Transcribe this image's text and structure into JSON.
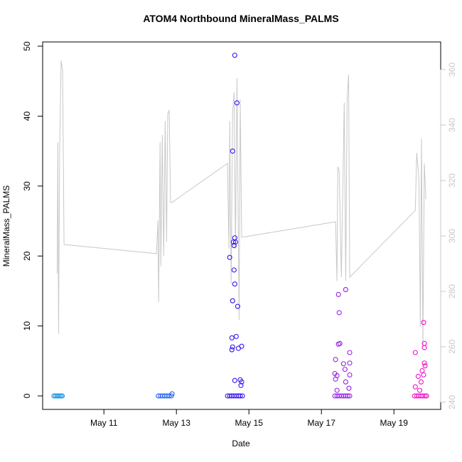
{
  "chart_data": {
    "type": "scatter",
    "title": "ATOM4 Northbound MineralMass_PALMS",
    "x_label": "Date",
    "y_label": "MineralMass_PALMS",
    "xlim": [
      9.31,
      20.29
    ],
    "xticks": [
      {
        "value": 11,
        "label": "May 11"
      },
      {
        "value": 13,
        "label": "May 13"
      },
      {
        "value": 15,
        "label": "May 15"
      },
      {
        "value": 17,
        "label": "May 17"
      },
      {
        "value": 19,
        "label": "May 19"
      }
    ],
    "ylim": [
      -1.93,
      50.61
    ],
    "yticks": [
      0,
      10,
      20,
      30,
      40,
      50
    ],
    "y2lim": [
      237.4,
      370
    ],
    "y2ticks": [
      240,
      260,
      280,
      300,
      320,
      340,
      360
    ],
    "y2_color": "#c8c8c8",
    "grid": false,
    "series": [
      {
        "mode": "line",
        "axis": "y2",
        "color": "#c8c8c8",
        "x": [
          9.71,
          9.73,
          9.75,
          9.78,
          9.82,
          9.86,
          9.9,
          12.45,
          12.49,
          12.51,
          12.55,
          12.57,
          12.61,
          12.65,
          12.69,
          12.73,
          12.76,
          12.8,
          12.84,
          12.88,
          14.41,
          14.45,
          14.47,
          14.51,
          14.55,
          14.59,
          14.63,
          14.67,
          14.73,
          14.76,
          14.8,
          17.39,
          17.43,
          17.45,
          17.49,
          17.55,
          17.63,
          17.67,
          17.71,
          17.75,
          17.78,
          19.59,
          19.63,
          19.69,
          19.73,
          19.76,
          19.8,
          19.84,
          19.88
        ],
        "values": [
          286.4,
          333.8,
          264.6,
          332.6,
          363.3,
          359.5,
          296.9,
          293.6,
          305.6,
          276.2,
          333.8,
          289.0,
          336.4,
          292.8,
          341.5,
          297.9,
          344.1,
          345.4,
          312.1,
          312.1,
          326.2,
          295.4,
          341.5,
          282.6,
          344.1,
          351.8,
          295.4,
          356.9,
          269.7,
          349.2,
          299.5,
          305.1,
          283.8,
          324.9,
          323.6,
          285.1,
          348.0,
          283.8,
          349.2,
          358.2,
          285.1,
          309.2,
          330.0,
          321.0,
          267.2,
          335.1,
          260.8,
          326.2,
          313.3
        ]
      },
      {
        "mode": "points",
        "color": "#1e9ce8",
        "x": [
          9.62,
          9.66,
          9.7,
          9.74,
          9.78,
          9.82,
          9.85
        ],
        "values": [
          0,
          0,
          0,
          0,
          0,
          0,
          0
        ]
      },
      {
        "mode": "points",
        "color": "#2463ee",
        "x": [
          12.5,
          12.56,
          12.62,
          12.68,
          12.74,
          12.8,
          12.86,
          12.88
        ],
        "values": [
          0,
          0,
          0,
          0,
          0,
          0,
          0,
          0.3
        ]
      },
      {
        "mode": "points",
        "color": "#3315ee",
        "x": [
          14.47,
          14.55,
          14.61,
          14.67,
          14.57,
          14.63,
          14.61,
          14.59,
          14.59,
          14.61,
          14.55,
          14.69,
          14.53,
          14.65,
          14.55,
          14.53,
          14.71,
          14.8,
          14.61,
          14.76,
          14.8,
          14.78,
          14.41,
          14.47,
          14.53,
          14.59,
          14.65,
          14.71,
          14.76,
          14.82
        ],
        "values": [
          19.8,
          35,
          48.7,
          41.9,
          22,
          22,
          22.6,
          21.5,
          18,
          16,
          13.6,
          12.8,
          8.3,
          8.5,
          7,
          6.6,
          6.8,
          7.1,
          2.2,
          2.3,
          2,
          1.5,
          0,
          0,
          0,
          0,
          0,
          0,
          0,
          0
        ]
      },
      {
        "mode": "points",
        "color": "#9a22e6",
        "x": [
          17.47,
          17.67,
          17.49,
          17.47,
          17.51,
          17.78,
          17.39,
          17.61,
          17.78,
          17.65,
          17.37,
          17.43,
          17.78,
          17.39,
          17.67,
          17.76,
          17.43,
          17.37,
          17.43,
          17.49,
          17.55,
          17.61,
          17.67,
          17.73,
          17.78
        ],
        "values": [
          14.5,
          15.2,
          11.9,
          7.4,
          7.5,
          6.2,
          5.2,
          4.6,
          4.7,
          3.8,
          3.2,
          2.9,
          3,
          2.4,
          2,
          1.1,
          0.8,
          0,
          0,
          0,
          0,
          0,
          0,
          0,
          0
        ]
      },
      {
        "mode": "points",
        "color": "#ee12c6",
        "x": [
          19.82,
          19.84,
          19.84,
          19.59,
          19.84,
          19.86,
          19.78,
          19.82,
          19.67,
          19.75,
          19.59,
          19.71,
          19.57,
          19.63,
          19.69,
          19.75,
          19.8,
          19.86,
          19.9
        ],
        "values": [
          10.5,
          6.9,
          7.5,
          6.2,
          4.7,
          4.3,
          3.6,
          3,
          2.8,
          2,
          1.3,
          0.8,
          0,
          0,
          0,
          0,
          0,
          0,
          0
        ]
      }
    ]
  }
}
